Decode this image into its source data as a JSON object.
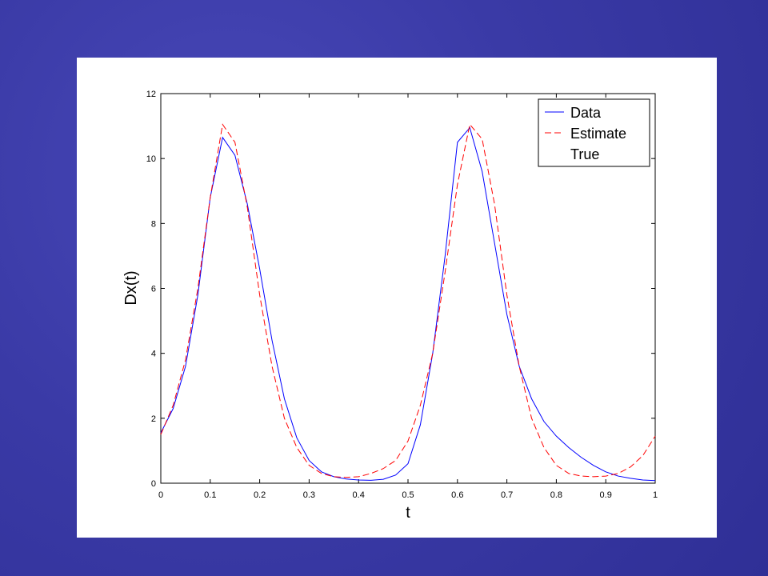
{
  "chart_data": {
    "type": "line",
    "xlabel": "t",
    "ylabel": "Dx(t)",
    "x": [
      0,
      0.025,
      0.05,
      0.075,
      0.1,
      0.125,
      0.15,
      0.175,
      0.2,
      0.225,
      0.25,
      0.275,
      0.3,
      0.325,
      0.35,
      0.375,
      0.4,
      0.425,
      0.45,
      0.475,
      0.5,
      0.525,
      0.55,
      0.575,
      0.6,
      0.625,
      0.65,
      0.675,
      0.7,
      0.725,
      0.75,
      0.775,
      0.8,
      0.825,
      0.85,
      0.875,
      0.9,
      0.925,
      0.95,
      0.975,
      1
    ],
    "series": [
      {
        "name": "Data",
        "color": "#0000ff",
        "dash": false,
        "values": [
          1.55,
          2.3,
          3.6,
          5.8,
          8.8,
          10.65,
          10.1,
          8.6,
          6.6,
          4.4,
          2.6,
          1.4,
          0.7,
          0.35,
          0.2,
          0.13,
          0.1,
          0.09,
          0.12,
          0.25,
          0.6,
          1.8,
          4.0,
          7.0,
          10.5,
          10.95,
          9.6,
          7.4,
          5.2,
          3.6,
          2.6,
          1.9,
          1.45,
          1.1,
          0.8,
          0.55,
          0.35,
          0.22,
          0.15,
          0.1,
          0.08
        ]
      },
      {
        "name": "Estimate",
        "color": "#ff0000",
        "dash": true,
        "values": [
          1.5,
          2.4,
          3.8,
          6.0,
          8.8,
          11.05,
          10.5,
          8.5,
          5.8,
          3.6,
          2.0,
          1.1,
          0.55,
          0.3,
          0.2,
          0.18,
          0.2,
          0.3,
          0.45,
          0.7,
          1.3,
          2.4,
          4.0,
          6.5,
          9.2,
          11.05,
          10.6,
          8.6,
          5.8,
          3.6,
          2.0,
          1.1,
          0.55,
          0.3,
          0.22,
          0.2,
          0.22,
          0.3,
          0.5,
          0.85,
          1.45
        ]
      },
      {
        "name": "True",
        "color": "#ffffff",
        "dash": false,
        "values": [
          null,
          null,
          null,
          null,
          null,
          null,
          null,
          null,
          null,
          null,
          null,
          null,
          null,
          null,
          null,
          null,
          null,
          null,
          null,
          null,
          null,
          null,
          null,
          null,
          null,
          null,
          null,
          null,
          null,
          null,
          null,
          null,
          null,
          null,
          null,
          null,
          null,
          null,
          null,
          null,
          null
        ]
      }
    ],
    "xlim": [
      0,
      1
    ],
    "ylim": [
      0,
      12
    ],
    "xticks": [
      0,
      0.1,
      0.2,
      0.3,
      0.4,
      0.5,
      0.6,
      0.7,
      0.8,
      0.9,
      1
    ],
    "yticks": [
      0,
      2,
      4,
      6,
      8,
      10,
      12
    ],
    "grid": false,
    "legend": "upper right"
  }
}
